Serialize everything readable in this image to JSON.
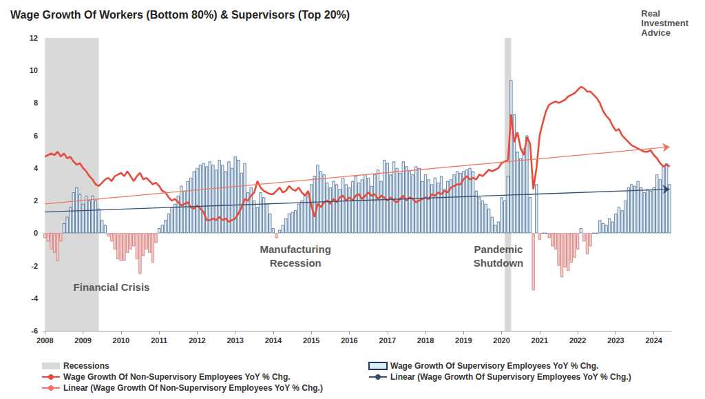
{
  "chart_data": {
    "type": "bar",
    "title": "Wage Growth Of Workers (Bottom 80%) & Supervisors (Top 20%)",
    "logo": "Real Investment Advice",
    "categories": [
      "2008",
      null,
      null,
      null,
      null,
      null,
      null,
      null,
      null,
      null,
      null,
      null,
      "2009",
      null,
      null,
      null,
      null,
      null,
      null,
      null,
      null,
      null,
      null,
      null,
      "2010",
      null,
      null,
      null,
      null,
      null,
      null,
      null,
      null,
      null,
      null,
      null,
      "2011",
      null,
      null,
      null,
      null,
      null,
      null,
      null,
      null,
      null,
      null,
      null,
      "2012",
      null,
      null,
      null,
      null,
      null,
      null,
      null,
      null,
      null,
      null,
      null,
      "2013",
      null,
      null,
      null,
      null,
      null,
      null,
      null,
      null,
      null,
      null,
      null,
      "2014",
      null,
      null,
      null,
      null,
      null,
      null,
      null,
      null,
      null,
      null,
      null,
      "2015",
      null,
      null,
      null,
      null,
      null,
      null,
      null,
      null,
      null,
      null,
      null,
      "2016",
      null,
      null,
      null,
      null,
      null,
      null,
      null,
      null,
      null,
      null,
      null,
      "2017",
      null,
      null,
      null,
      null,
      null,
      null,
      null,
      null,
      null,
      null,
      null,
      "2018",
      null,
      null,
      null,
      null,
      null,
      null,
      null,
      null,
      null,
      null,
      null,
      "2019",
      null,
      null,
      null,
      null,
      null,
      null,
      null,
      null,
      null,
      null,
      null,
      "2020",
      null,
      null,
      null,
      null,
      null,
      null,
      null,
      null,
      null,
      null,
      null,
      "2021",
      null,
      null,
      null,
      null,
      null,
      null,
      null,
      null,
      null,
      null,
      null,
      "2022",
      null,
      null,
      null,
      null,
      null,
      null,
      null,
      null,
      null,
      null,
      null,
      "2023",
      null,
      null,
      null,
      null,
      null,
      null,
      null,
      null,
      null,
      null,
      null,
      "2024",
      null,
      null,
      null,
      null,
      null
    ],
    "series": [
      {
        "name": "Wage Growth Of Supervisory Employees YoY % Chg.",
        "type": "bar",
        "color": "#dbeef9",
        "values": [
          -0.3,
          -0.5,
          -1.0,
          -1.2,
          -1.7,
          -0.5,
          0.6,
          1.0,
          1.6,
          2.5,
          2.8,
          2.4,
          1.8,
          2.3,
          2.0,
          2.3,
          2.0,
          1.5,
          0.8,
          0.5,
          -0.2,
          -0.5,
          -1.0,
          -1.6,
          -1.7,
          -1.7,
          -1.2,
          -1.0,
          -0.8,
          -1.6,
          -2.5,
          -1.4,
          -1.0,
          -1.2,
          -1.8,
          -0.6,
          0.3,
          0.5,
          0.8,
          1.2,
          1.6,
          1.8,
          2.3,
          2.9,
          2.6,
          3.2,
          3.4,
          3.8,
          4.0,
          4.2,
          4.3,
          4.1,
          4.4,
          4.2,
          3.9,
          4.5,
          4.2,
          3.8,
          4.4,
          4.0,
          4.7,
          4.5,
          3.7,
          4.3,
          2.5,
          2.8,
          2.0,
          1.6,
          2.5,
          2.2,
          1.8,
          1.2,
          0.3,
          -0.3,
          0.2,
          0.5,
          0.9,
          1.2,
          1.3,
          1.4,
          1.8,
          2.0,
          2.3,
          2.5,
          3.0,
          3.5,
          4.2,
          3.8,
          3.6,
          3.1,
          2.8,
          3.2,
          3.0,
          2.7,
          3.4,
          3.0,
          2.8,
          3.2,
          3.5,
          3.1,
          3.3,
          3.6,
          3.4,
          2.9,
          3.6,
          3.9,
          3.2,
          4.5,
          4.3,
          3.6,
          4.4,
          4.0,
          3.7,
          4.4,
          4.1,
          3.8,
          3.6,
          4.1,
          4.0,
          3.2,
          3.6,
          3.3,
          3.0,
          3.4,
          3.1,
          3.5,
          2.7,
          3.2,
          3.3,
          3.6,
          3.8,
          3.7,
          3.8,
          3.9,
          4.0,
          3.8,
          2.6,
          2.2,
          2.0,
          1.8,
          1.5,
          1.0,
          0.5,
          0.7,
          2.2,
          2.0,
          3.5,
          9.4,
          7.3,
          5.0,
          4.6,
          5.2,
          6.0,
          2.2,
          -3.5,
          3.0,
          -0.4,
          0.0,
          0.0,
          -0.3,
          -0.8,
          -1.0,
          -2.0,
          -2.7,
          -2.1,
          -2.3,
          -1.8,
          -1.5,
          -1.0,
          0.3,
          -0.5,
          -1.3,
          -0.8,
          0.0,
          0.0,
          0.8,
          0.6,
          0.5,
          0.9,
          0.7,
          1.2,
          1.6,
          1.4,
          2.0,
          2.8,
          3.0,
          2.9,
          3.2,
          2.8,
          2.5,
          2.7,
          2.6,
          2.8,
          3.6,
          3.3,
          4.1,
          4.3,
          3.0
        ]
      },
      {
        "name": "Wage Growth Of Non-Supervisory Employees YoY % Chg.",
        "type": "line",
        "color": "#e64b3c",
        "line_style": "solid",
        "values": [
          4.7,
          4.8,
          4.9,
          4.8,
          5.0,
          4.7,
          4.9,
          4.6,
          4.7,
          4.4,
          4.2,
          4.3,
          4.0,
          3.8,
          3.5,
          3.3,
          3.0,
          2.9,
          3.1,
          3.3,
          3.4,
          3.2,
          3.5,
          3.6,
          3.7,
          3.5,
          3.8,
          3.5,
          3.2,
          3.5,
          3.7,
          3.3,
          3.4,
          3.2,
          3.0,
          3.1,
          2.9,
          2.6,
          2.5,
          2.2,
          2.0,
          2.1,
          1.9,
          1.7,
          1.8,
          1.9,
          1.6,
          1.5,
          1.7,
          1.5,
          1.3,
          0.8,
          0.8,
          0.9,
          0.8,
          1.0,
          0.8,
          0.9,
          0.7,
          0.8,
          0.9,
          1.2,
          1.6,
          2.1,
          2.0,
          2.3,
          2.5,
          3.2,
          2.8,
          2.6,
          2.5,
          2.4,
          2.4,
          2.6,
          2.8,
          2.5,
          2.6,
          2.9,
          2.7,
          2.6,
          2.8,
          2.5,
          2.3,
          2.6,
          1.7,
          1.0,
          1.8,
          1.6,
          1.9,
          2.0,
          1.8,
          2.1,
          1.9,
          2.2,
          2.3,
          2.0,
          2.2,
          2.0,
          2.3,
          2.4,
          2.1,
          2.3,
          2.5,
          2.3,
          2.4,
          2.1,
          2.3,
          2.2,
          2.0,
          2.2,
          2.0,
          1.9,
          2.1,
          2.3,
          2.0,
          2.2,
          2.1,
          1.9,
          2.0,
          2.1,
          2.2,
          2.1,
          2.4,
          2.3,
          2.5,
          2.4,
          2.6,
          2.5,
          2.8,
          2.9,
          3.0,
          3.0,
          3.3,
          3.5,
          3.3,
          3.4,
          3.3,
          3.6,
          3.5,
          3.7,
          3.9,
          3.8,
          3.9,
          4.0,
          4.3,
          4.4,
          4.5,
          7.3,
          5.6,
          6.2,
          5.2,
          4.8,
          5.9,
          5.5,
          2.7,
          4.0,
          6.0,
          6.8,
          7.5,
          7.9,
          8.0,
          8.1,
          8.0,
          8.1,
          8.2,
          8.4,
          8.5,
          8.6,
          8.8,
          9.0,
          8.9,
          8.7,
          8.7,
          8.5,
          8.3,
          8.0,
          7.5,
          7.2,
          7.0,
          6.6,
          6.3,
          6.4,
          6.0,
          5.8,
          5.6,
          5.4,
          5.3,
          5.2,
          5.1,
          5.0,
          5.0,
          5.1,
          4.8,
          4.6,
          4.3,
          4.1,
          4.2,
          4.1
        ]
      },
      {
        "name": "Linear (Wage Growth Of Supervisory Employees YoY % Chg.)",
        "type": "line",
        "color": "#34506e",
        "line_style": "solid",
        "marker": "arrow",
        "values": [
          1.3,
          null,
          null,
          null,
          null,
          null,
          null,
          null,
          null,
          null,
          null,
          null,
          null,
          null,
          null,
          null,
          null,
          null,
          null,
          null,
          null,
          null,
          null,
          null,
          null,
          null,
          null,
          null,
          null,
          null,
          null,
          null,
          null,
          null,
          null,
          null,
          null,
          null,
          null,
          null,
          null,
          null,
          null,
          null,
          null,
          null,
          null,
          null,
          null,
          null,
          null,
          null,
          null,
          null,
          null,
          null,
          null,
          null,
          null,
          null,
          null,
          null,
          null,
          null,
          null,
          null,
          null,
          null,
          null,
          null,
          null,
          null,
          null,
          null,
          null,
          null,
          null,
          null,
          null,
          null,
          null,
          null,
          null,
          null,
          null,
          null,
          null,
          null,
          null,
          null,
          null,
          null,
          null,
          null,
          null,
          null,
          null,
          null,
          null,
          null,
          null,
          null,
          null,
          null,
          null,
          null,
          null,
          null,
          null,
          null,
          null,
          null,
          null,
          null,
          null,
          null,
          null,
          null,
          null,
          null,
          null,
          null,
          null,
          null,
          null,
          null,
          null,
          null,
          null,
          null,
          null,
          null,
          null,
          null,
          null,
          null,
          null,
          null,
          null,
          null,
          null,
          null,
          null,
          null,
          null,
          null,
          null,
          null,
          null,
          null,
          null,
          null,
          null,
          null,
          null,
          null,
          null,
          null,
          null,
          null,
          null,
          null,
          null,
          null,
          null,
          null,
          null,
          null,
          null,
          null,
          null,
          null,
          null,
          null,
          null,
          null,
          null,
          null,
          null,
          null,
          null,
          null,
          null,
          null,
          null,
          null,
          null,
          null,
          null,
          null,
          null,
          null,
          null,
          null,
          null,
          null,
          null,
          2.7
        ]
      },
      {
        "name": "Linear (Wage Growth Of Non-Supervisory Employees YoY % Chg.)",
        "type": "line",
        "color": "#f2735f",
        "line_style": "solid",
        "marker": "arrow",
        "values": [
          1.8,
          null,
          null,
          null,
          null,
          null,
          null,
          null,
          null,
          null,
          null,
          null,
          null,
          null,
          null,
          null,
          null,
          null,
          null,
          null,
          null,
          null,
          null,
          null,
          null,
          null,
          null,
          null,
          null,
          null,
          null,
          null,
          null,
          null,
          null,
          null,
          null,
          null,
          null,
          null,
          null,
          null,
          null,
          null,
          null,
          null,
          null,
          null,
          null,
          null,
          null,
          null,
          null,
          null,
          null,
          null,
          null,
          null,
          null,
          null,
          null,
          null,
          null,
          null,
          null,
          null,
          null,
          null,
          null,
          null,
          null,
          null,
          null,
          null,
          null,
          null,
          null,
          null,
          null,
          null,
          null,
          null,
          null,
          null,
          null,
          null,
          null,
          null,
          null,
          null,
          null,
          null,
          null,
          null,
          null,
          null,
          null,
          null,
          null,
          null,
          null,
          null,
          null,
          null,
          null,
          null,
          null,
          null,
          null,
          null,
          null,
          null,
          null,
          null,
          null,
          null,
          null,
          null,
          null,
          null,
          null,
          null,
          null,
          null,
          null,
          null,
          null,
          null,
          null,
          null,
          null,
          null,
          null,
          null,
          null,
          null,
          null,
          null,
          null,
          null,
          null,
          null,
          null,
          null,
          null,
          null,
          null,
          null,
          null,
          null,
          null,
          null,
          null,
          null,
          null,
          null,
          null,
          null,
          null,
          null,
          null,
          null,
          null,
          null,
          null,
          null,
          null,
          null,
          null,
          null,
          null,
          null,
          null,
          null,
          null,
          null,
          null,
          null,
          null,
          null,
          null,
          null,
          null,
          null,
          null,
          null,
          null,
          null,
          null,
          null,
          null,
          null,
          null,
          null,
          null,
          null,
          null,
          5.3
        ]
      }
    ],
    "recessions": {
      "name": "Recessions",
      "color": "#d9d9d9",
      "ranges": [
        [
          0,
          17
        ],
        [
          145,
          147
        ]
      ]
    },
    "annotations": [
      {
        "text": "Financial Crisis",
        "x": 21,
        "y": -3.3
      },
      {
        "text": "Manufacturing\nRecession",
        "x": 79,
        "y": -1.4
      },
      {
        "text": "Pandemic\nShutdown",
        "x": 143,
        "y": -1.4
      }
    ],
    "ylim": [
      -6,
      12
    ],
    "yticks": [
      -6,
      -4,
      -2,
      0,
      2,
      4,
      6,
      8,
      10,
      12
    ],
    "grid": false,
    "legend": "bottom"
  }
}
